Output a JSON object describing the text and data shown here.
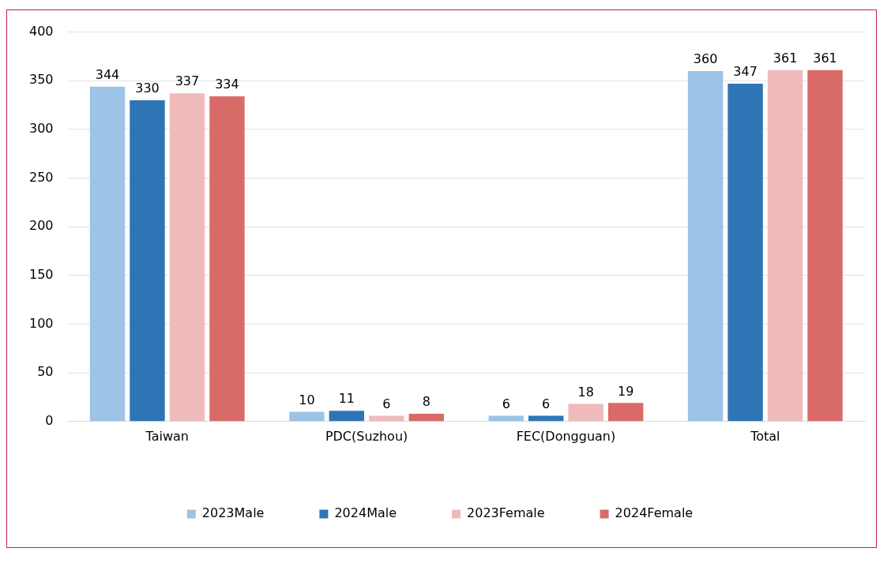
{
  "chart_data": {
    "type": "bar",
    "categories": [
      "Taiwan",
      "PDC(Suzhou)",
      "FEC(Dongguan)",
      "Total"
    ],
    "series": [
      {
        "name": "2023Male",
        "color": "#9dc3e6",
        "values": [
          344,
          10,
          6,
          360
        ]
      },
      {
        "name": "2024Male",
        "color": "#2e75b6",
        "values": [
          330,
          11,
          6,
          347
        ]
      },
      {
        "name": "2023Female",
        "color": "#eebbba",
        "values": [
          337,
          6,
          18,
          361
        ]
      },
      {
        "name": "2024Female",
        "color": "#d86b68",
        "values": [
          334,
          8,
          19,
          361
        ]
      }
    ],
    "ylim": [
      0,
      400
    ],
    "yticks": [
      0,
      50,
      100,
      150,
      200,
      250,
      300,
      350,
      400
    ],
    "grid": "y",
    "legend": "bottom",
    "data_labels": true
  }
}
